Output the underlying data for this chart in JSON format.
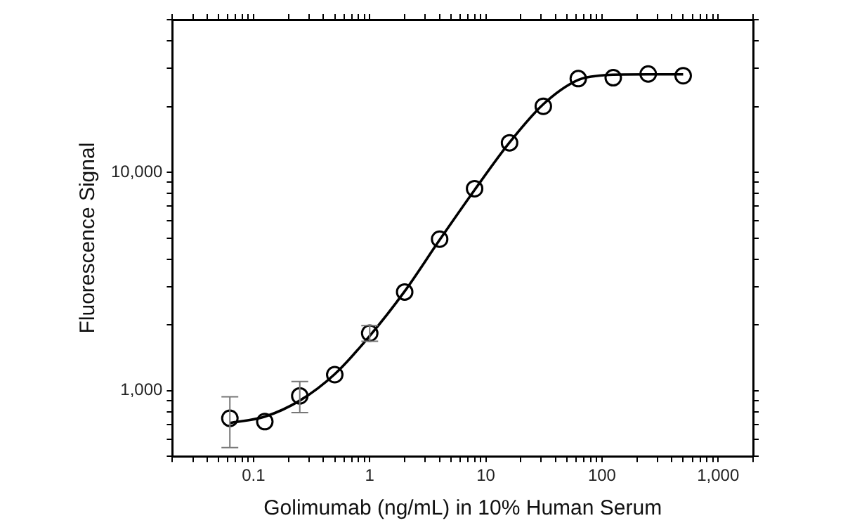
{
  "chart_data": {
    "type": "scatter",
    "xlabel": "Golimumab (ng/mL) in 10% Human Serum",
    "ylabel": "Fluorescence Signal",
    "log": "xy",
    "grid": false,
    "legend": false,
    "xlim": [
      0.02,
      2000
    ],
    "ylim": [
      500,
      50000
    ],
    "xticks": [
      {
        "value": 0.02,
        "label": null
      },
      {
        "value": 0.03,
        "label": null
      },
      {
        "value": 0.04,
        "label": null
      },
      {
        "value": 0.05,
        "label": null
      },
      {
        "value": 0.06,
        "label": null
      },
      {
        "value": 0.07,
        "label": null
      },
      {
        "value": 0.08,
        "label": null
      },
      {
        "value": 0.09,
        "label": null
      },
      0.1,
      {
        "value": 0.2,
        "label": null
      },
      {
        "value": 0.3,
        "label": null
      },
      {
        "value": 0.4,
        "label": null
      },
      {
        "value": 0.5,
        "label": null
      },
      {
        "value": 0.6,
        "label": null
      },
      {
        "value": 0.7,
        "label": null
      },
      {
        "value": 0.8,
        "label": null
      },
      {
        "value": 0.9,
        "label": null
      },
      1,
      {
        "value": 2,
        "label": null
      },
      {
        "value": 3,
        "label": null
      },
      {
        "value": 4,
        "label": null
      },
      {
        "value": 5,
        "label": null
      },
      {
        "value": 6,
        "label": null
      },
      {
        "value": 7,
        "label": null
      },
      {
        "value": 8,
        "label": null
      },
      {
        "value": 9,
        "label": null
      },
      10,
      {
        "value": 20,
        "label": null
      },
      {
        "value": 30,
        "label": null
      },
      {
        "value": 40,
        "label": null
      },
      {
        "value": 50,
        "label": null
      },
      {
        "value": 60,
        "label": null
      },
      {
        "value": 70,
        "label": null
      },
      {
        "value": 80,
        "label": null
      },
      {
        "value": 90,
        "label": null
      },
      100,
      {
        "value": 200,
        "label": null
      },
      {
        "value": 300,
        "label": null
      },
      {
        "value": 400,
        "label": null
      },
      {
        "value": 500,
        "label": null
      },
      {
        "value": 600,
        "label": null
      },
      {
        "value": 700,
        "label": null
      },
      {
        "value": 800,
        "label": null
      },
      {
        "value": 900,
        "label": null
      },
      {
        "value": 1000,
        "label": "1,000"
      },
      {
        "value": 2000,
        "label": null
      }
    ],
    "yticks": [
      {
        "value": 500,
        "label": null
      },
      {
        "value": 600,
        "label": null
      },
      {
        "value": 700,
        "label": null
      },
      {
        "value": 800,
        "label": null
      },
      {
        "value": 900,
        "label": null
      },
      {
        "value": 1000,
        "label": "1,000"
      },
      {
        "value": 2000,
        "label": null
      },
      {
        "value": 3000,
        "label": null
      },
      {
        "value": 4000,
        "label": null
      },
      {
        "value": 5000,
        "label": null
      },
      {
        "value": 6000,
        "label": null
      },
      {
        "value": 7000,
        "label": null
      },
      {
        "value": 8000,
        "label": null
      },
      {
        "value": 9000,
        "label": null
      },
      {
        "value": 10000,
        "label": "10,000"
      },
      {
        "value": 20000,
        "label": null
      },
      {
        "value": 30000,
        "label": null
      },
      {
        "value": 40000,
        "label": null
      },
      {
        "value": 50000,
        "label": null
      }
    ],
    "series": [
      {
        "type": "scatter",
        "color": "#000000",
        "marker": "circle",
        "x": [
          0.0625,
          0.125,
          0.25,
          0.5,
          1,
          2,
          4,
          8,
          16,
          31.25,
          62.5,
          125,
          250,
          500
        ],
        "values": [
          747,
          721,
          946,
          1183,
          1832,
          2830,
          4940,
          8410,
          13650,
          20050,
          26850,
          27100,
          28200,
          27700
        ],
        "errors": [
          [
            548,
            936
          ],
          null,
          [
            793,
            1100
          ],
          null,
          [
            1683,
            1983
          ],
          null,
          null,
          null,
          null,
          null,
          null,
          null,
          null,
          null
        ]
      },
      {
        "type": "line",
        "color": "#000000",
        "marker": "none",
        "line_style": "solid",
        "x": [
          0.0625,
          0.125,
          0.25,
          0.5,
          1,
          2,
          4,
          8,
          16,
          31.25,
          62.5,
          100,
          125,
          250,
          500
        ],
        "values": [
          711,
          760,
          900,
          1190,
          1780,
          2850,
          4900,
          8300,
          13700,
          20500,
          26500,
          27800,
          28000,
          28100,
          28100
        ]
      }
    ]
  }
}
